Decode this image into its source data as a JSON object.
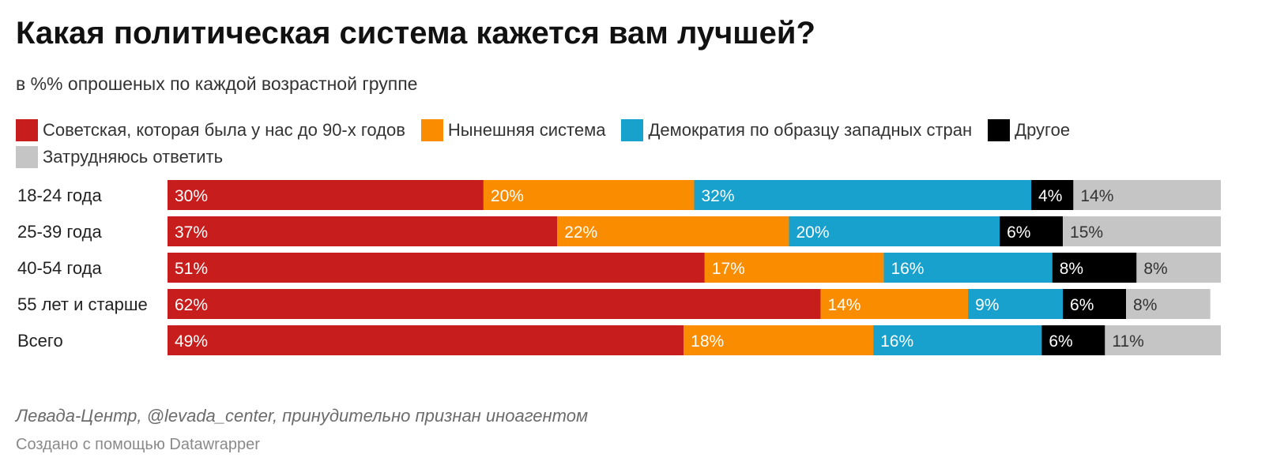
{
  "title": "Какая политическая система кажется вам лучшей?",
  "subtitle": "в %% опрошеных по каждой возрастной группе",
  "source": "Левада-Центр, @levada_center, принудительно признан иноагентом",
  "credit": "Создано с помощью Datawrapper",
  "chart_data": {
    "type": "bar",
    "orientation": "horizontal",
    "stacked": true,
    "title": "Какая политическая система кажется вам лучшей?",
    "subtitle": "в %% опрошеных по каждой возрастной группе",
    "legend_position": "top",
    "grid": false,
    "xlim": [
      0,
      100
    ],
    "categories": [
      "18-24 года",
      "25-39 года",
      "40-54 года",
      "55 лет и старше",
      "Всего"
    ],
    "series": [
      {
        "name": "Советская, которая была у нас до 90-х годов",
        "color": "#c71e1d",
        "label_color": "#ffffff",
        "values": [
          30,
          37,
          51,
          62,
          49
        ]
      },
      {
        "name": "Нынешняя система",
        "color": "#fa8c00",
        "label_color": "#ffffff",
        "values": [
          20,
          22,
          17,
          14,
          18
        ]
      },
      {
        "name": "Демократия по образцу западных стран",
        "color": "#18a1cd",
        "label_color": "#ffffff",
        "values": [
          32,
          20,
          16,
          9,
          16
        ]
      },
      {
        "name": "Другое",
        "color": "#000000",
        "label_color": "#ffffff",
        "values": [
          4,
          6,
          8,
          6,
          6
        ]
      },
      {
        "name": "Затрудняюсь ответить",
        "color": "#c5c5c5",
        "label_color": "#333333",
        "values": [
          14,
          15,
          8,
          8,
          11
        ]
      }
    ]
  }
}
